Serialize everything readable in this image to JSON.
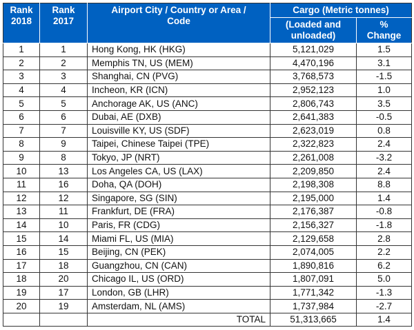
{
  "header": {
    "rank_2018": [
      "Rank",
      "2018"
    ],
    "rank_2017": [
      "Rank",
      "2017"
    ],
    "airport": "Airport City / Country or Area / Code",
    "cargo": "Cargo (Metric tonnes)",
    "loaded": "(Loaded and unloaded)",
    "change": "% Change"
  },
  "rows": [
    {
      "r2018": "1",
      "r2017": "1",
      "airport": "Hong Kong, HK (HKG)",
      "cargo": "5,121,029",
      "change": "1.5"
    },
    {
      "r2018": "2",
      "r2017": "2",
      "airport": "Memphis TN, US (MEM)",
      "cargo": "4,470,196",
      "change": "3.1"
    },
    {
      "r2018": "3",
      "r2017": "3",
      "airport": "Shanghai, CN (PVG)",
      "cargo": "3,768,573",
      "change": "-1.5"
    },
    {
      "r2018": "4",
      "r2017": "4",
      "airport": "Incheon, KR (ICN)",
      "cargo": "2,952,123",
      "change": "1.0"
    },
    {
      "r2018": "5",
      "r2017": "5",
      "airport": "Anchorage AK, US (ANC)",
      "cargo": "2,806,743",
      "change": "3.5"
    },
    {
      "r2018": "6",
      "r2017": "6",
      "airport": "Dubai, AE (DXB)",
      "cargo": "2,641,383",
      "change": "-0.5"
    },
    {
      "r2018": "7",
      "r2017": "7",
      "airport": "Louisville KY, US (SDF)",
      "cargo": "2,623,019",
      "change": "0.8"
    },
    {
      "r2018": "8",
      "r2017": "9",
      "airport": "Taipei, Chinese Taipei (TPE)",
      "cargo": "2,322,823",
      "change": "2.4"
    },
    {
      "r2018": "9",
      "r2017": "8",
      "airport": "Tokyo, JP (NRT)",
      "cargo": "2,261,008",
      "change": "-3.2"
    },
    {
      "r2018": "10",
      "r2017": "13",
      "airport": "Los Angeles CA, US (LAX)",
      "cargo": "2,209,850",
      "change": "2.4"
    },
    {
      "r2018": "11",
      "r2017": "16",
      "airport": "Doha, QA (DOH)",
      "cargo": "2,198,308",
      "change": "8.8"
    },
    {
      "r2018": "12",
      "r2017": "12",
      "airport": "Singapore, SG (SIN)",
      "cargo": "2,195,000",
      "change": "1.4"
    },
    {
      "r2018": "13",
      "r2017": "11",
      "airport": "Frankfurt, DE (FRA)",
      "cargo": "2,176,387",
      "change": "-0.8"
    },
    {
      "r2018": "14",
      "r2017": "10",
      "airport": "Paris, FR (CDG)",
      "cargo": "2,156,327",
      "change": "-1.8"
    },
    {
      "r2018": "15",
      "r2017": "14",
      "airport": "Miami FL, US (MIA)",
      "cargo": "2,129,658",
      "change": "2.8"
    },
    {
      "r2018": "16",
      "r2017": "15",
      "airport": "Beijing, CN (PEK)",
      "cargo": "2,074,005",
      "change": "2.2"
    },
    {
      "r2018": "17",
      "r2017": "18",
      "airport": "Guangzhou, CN (CAN)",
      "cargo": "1,890,816",
      "change": "6.2"
    },
    {
      "r2018": "18",
      "r2017": "20",
      "airport": "Chicago IL, US (ORD)",
      "cargo": "1,807,091",
      "change": "5.0"
    },
    {
      "r2018": "19",
      "r2017": "17",
      "airport": "London, GB (LHR)",
      "cargo": "1,771,342",
      "change": "-1.3"
    },
    {
      "r2018": "20",
      "r2017": "19",
      "airport": "Amsterdam, NL (AMS)",
      "cargo": "1,737,984",
      "change": "-2.7"
    }
  ],
  "total": {
    "label": "TOTAL",
    "cargo": "51,313,665",
    "change": "1.4"
  },
  "colors": {
    "header_bg": "#0061c1",
    "header_text": "#ffffff"
  }
}
